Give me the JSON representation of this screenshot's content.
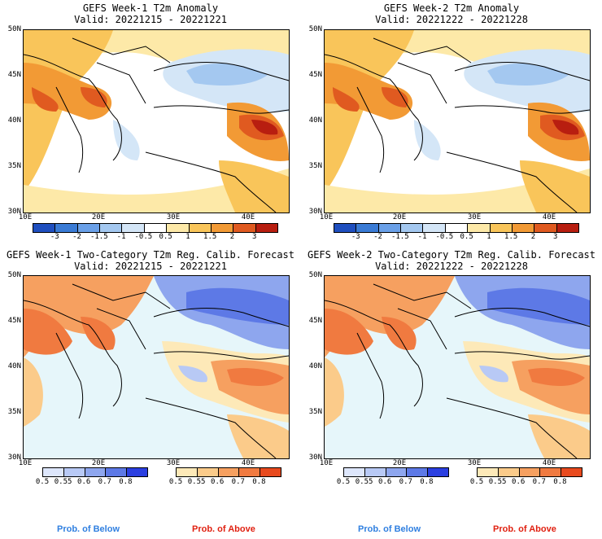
{
  "panels": [
    {
      "title1": "GEFS Week-1 T2m Anomaly",
      "title2": "Valid: 20221215 - 20221221"
    },
    {
      "title1": "GEFS Week-2 T2m Anomaly",
      "title2": "Valid: 20221222 - 20221228"
    },
    {
      "title1": "GEFS Week-1 Two-Category T2m Reg. Calib. Forecast",
      "title2": "Valid: 20221215 - 20221221"
    },
    {
      "title1": "GEFS Week-2 Two-Category T2m Reg. Calib. Forecast",
      "title2": "Valid: 20221222 - 20221228"
    }
  ],
  "axes": {
    "lat_labels": [
      "50N",
      "45N",
      "40N",
      "35N",
      "30N"
    ],
    "lon_labels": [
      "10E",
      "20E",
      "30E",
      "40E"
    ]
  },
  "anomaly_colorbar": {
    "labels": [
      "-3",
      "-2",
      "-1.5",
      "-1",
      "-0.5",
      "0.5",
      "1",
      "1.5",
      "2",
      "3"
    ],
    "colors": [
      "#1f4fbf",
      "#3a7bd5",
      "#6aa0e8",
      "#a4c8f0",
      "#d4e6f7",
      "#ffffff",
      "#fde9a8",
      "#f9c55a",
      "#f29a35",
      "#e05a20",
      "#b81e10"
    ]
  },
  "below_colorbar": {
    "labels": [
      "0.5",
      "0.55",
      "0.6",
      "0.7",
      "0.8"
    ],
    "colors": [
      "#dde6fb",
      "#b8c9f5",
      "#8ea6ee",
      "#5d79e6",
      "#2b3fe0"
    ]
  },
  "above_colorbar": {
    "labels": [
      "0.5",
      "0.55",
      "0.6",
      "0.7",
      "0.8"
    ],
    "colors": [
      "#fde9b8",
      "#fbcb8a",
      "#f6a060",
      "#f07a40",
      "#e84a1e"
    ]
  },
  "prob_labels": {
    "below": "Prob. of Below",
    "above": "Prob. of Above"
  },
  "colors": {
    "below_text": "#2f7fe0",
    "above_text": "#e02010",
    "sea_bg": "#e6f6fa"
  }
}
